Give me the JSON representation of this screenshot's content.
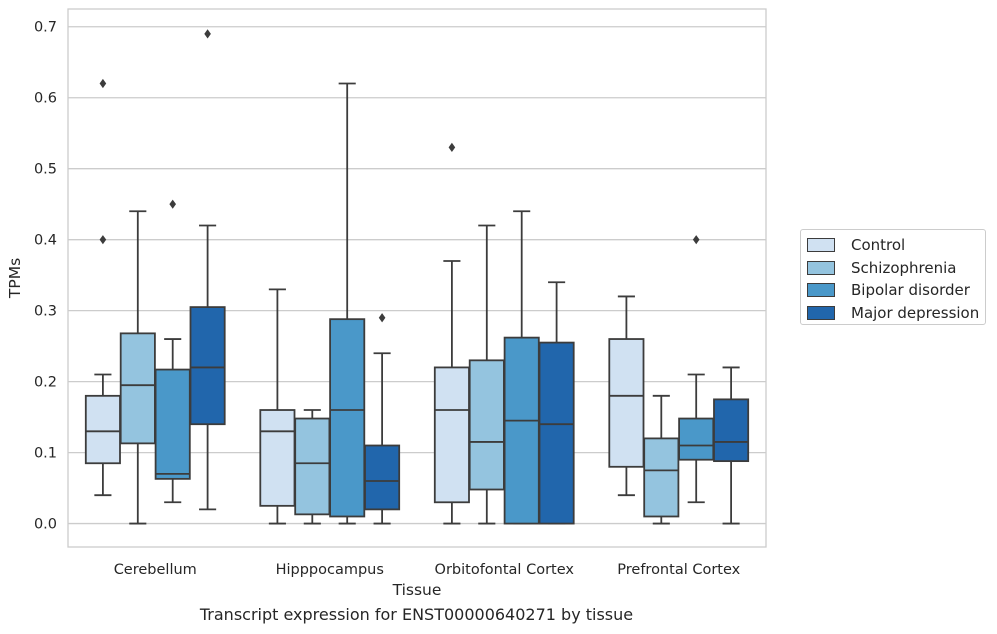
{
  "caption": "Transcript expression for ENST00000640271 by tissue",
  "chart_data": {
    "type": "box",
    "title": "",
    "xlabel": "Tissue",
    "ylabel": "TPMs",
    "ylim": [
      -0.033,
      0.725
    ],
    "yticks": [
      "0.0",
      "0.1",
      "0.2",
      "0.3",
      "0.4",
      "0.5",
      "0.6",
      "0.7"
    ],
    "grid": "horizontal",
    "legend_position": "right",
    "categories": [
      "Cerebellum",
      "Hipppocampus",
      "Orbitofontal Cortex",
      "Prefrontal Cortex"
    ],
    "series": [
      {
        "name": "Control",
        "color": "#d0e1f2",
        "boxes": [
          {
            "whislo": 0.04,
            "q1": 0.085,
            "med": 0.13,
            "q3": 0.18,
            "whishi": 0.21,
            "fliers": [
              0.4,
              0.62
            ]
          },
          {
            "whislo": 0.0,
            "q1": 0.025,
            "med": 0.13,
            "q3": 0.16,
            "whishi": 0.33,
            "fliers": []
          },
          {
            "whislo": 0.0,
            "q1": 0.03,
            "med": 0.16,
            "q3": 0.22,
            "whishi": 0.37,
            "fliers": [
              0.53
            ]
          },
          {
            "whislo": 0.04,
            "q1": 0.08,
            "med": 0.18,
            "q3": 0.26,
            "whishi": 0.32,
            "fliers": []
          }
        ]
      },
      {
        "name": "Schizophrenia",
        "color": "#94c4df",
        "boxes": [
          {
            "whislo": 0.0,
            "q1": 0.113,
            "med": 0.195,
            "q3": 0.268,
            "whishi": 0.44,
            "fliers": []
          },
          {
            "whislo": 0.0,
            "q1": 0.013,
            "med": 0.085,
            "q3": 0.148,
            "whishi": 0.16,
            "fliers": []
          },
          {
            "whislo": 0.0,
            "q1": 0.048,
            "med": 0.115,
            "q3": 0.23,
            "whishi": 0.42,
            "fliers": []
          },
          {
            "whislo": 0.0,
            "q1": 0.01,
            "med": 0.075,
            "q3": 0.12,
            "whishi": 0.18,
            "fliers": []
          }
        ]
      },
      {
        "name": "Bipolar disorder",
        "color": "#4a98c9",
        "boxes": [
          {
            "whislo": 0.03,
            "q1": 0.063,
            "med": 0.07,
            "q3": 0.217,
            "whishi": 0.26,
            "fliers": [
              0.45
            ]
          },
          {
            "whislo": 0.0,
            "q1": 0.01,
            "med": 0.16,
            "q3": 0.288,
            "whishi": 0.62,
            "fliers": []
          },
          {
            "whislo": 0.0,
            "q1": 0.0,
            "med": 0.145,
            "q3": 0.262,
            "whishi": 0.44,
            "fliers": []
          },
          {
            "whislo": 0.03,
            "q1": 0.09,
            "med": 0.11,
            "q3": 0.148,
            "whishi": 0.21,
            "fliers": [
              0.4
            ]
          }
        ]
      },
      {
        "name": "Major depression",
        "color": "#2166ac",
        "boxes": [
          {
            "whislo": 0.02,
            "q1": 0.14,
            "med": 0.22,
            "q3": 0.305,
            "whishi": 0.42,
            "fliers": [
              0.69
            ]
          },
          {
            "whislo": 0.0,
            "q1": 0.02,
            "med": 0.06,
            "q3": 0.11,
            "whishi": 0.24,
            "fliers": [
              0.29
            ]
          },
          {
            "whislo": 0.0,
            "q1": 0.0,
            "med": 0.14,
            "q3": 0.255,
            "whishi": 0.34,
            "fliers": []
          },
          {
            "whislo": 0.0,
            "q1": 0.088,
            "med": 0.115,
            "q3": 0.175,
            "whishi": 0.22,
            "fliers": []
          }
        ]
      }
    ]
  }
}
